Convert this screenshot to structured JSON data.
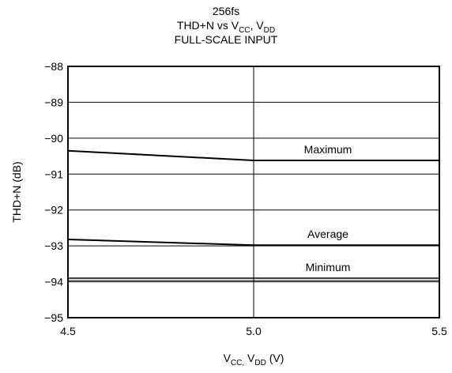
{
  "chart_data": {
    "type": "line",
    "title_lines": [
      "256fs",
      "THD+N vs V",
      "FULL-SCALE INPUT"
    ],
    "title_line2_parts": [
      "THD+N vs V",
      "CC",
      ", V",
      "DD"
    ],
    "xlabel_parts": [
      "V",
      "CC,",
      " V",
      "DD",
      " (V)"
    ],
    "ylabel": "THD+N (dB)",
    "x_ticks": [
      "4.5",
      "5.0",
      "5.5"
    ],
    "x_tick_values": [
      4.5,
      5.0,
      5.5
    ],
    "y_ticks": [
      "−88",
      "−89",
      "−90",
      "−91",
      "−92",
      "−93",
      "−94",
      "−95"
    ],
    "y_tick_values": [
      -88,
      -89,
      -90,
      -91,
      -92,
      -93,
      -94,
      -95
    ],
    "xlim": [
      4.5,
      5.5
    ],
    "ylim": [
      -95,
      -88
    ],
    "grid": true,
    "series": [
      {
        "name": "Maximum",
        "x": [
          4.5,
          5.0,
          5.5
        ],
        "y": [
          -90.35,
          -90.62,
          -90.62
        ]
      },
      {
        "name": "Average",
        "x": [
          4.5,
          5.0,
          5.5
        ],
        "y": [
          -92.82,
          -92.98,
          -92.98
        ]
      },
      {
        "name": "Minimum",
        "x": [
          4.5,
          5.0,
          5.5
        ],
        "y": [
          -93.9,
          -93.9,
          -93.9
        ]
      }
    ]
  }
}
